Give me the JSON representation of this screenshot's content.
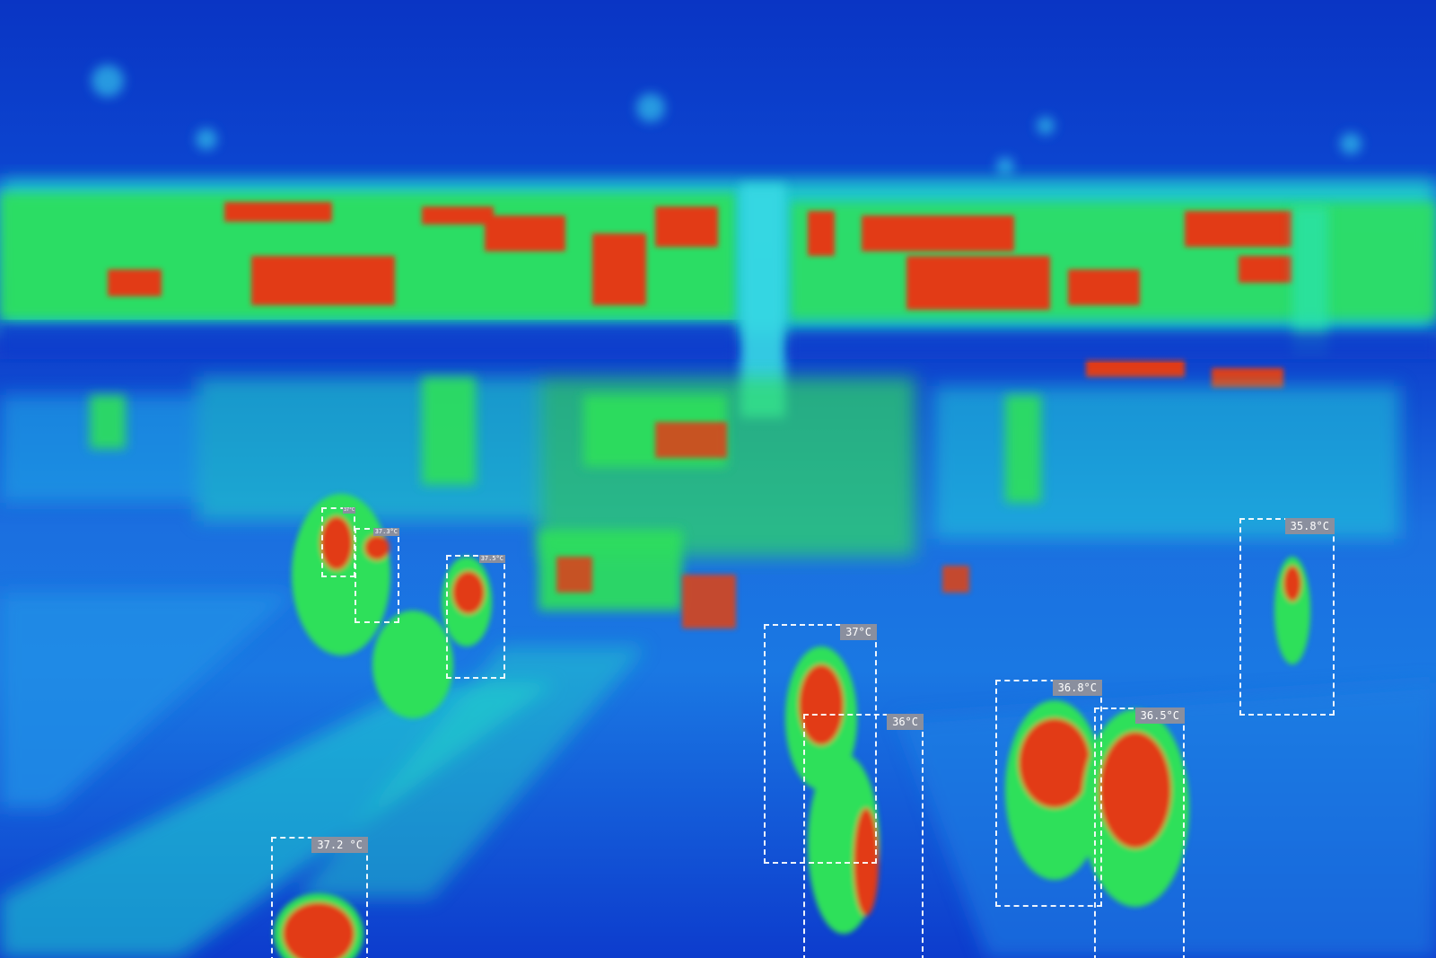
{
  "image": {
    "description_tags": [
      "thermal-camera-view",
      "indoor-hall",
      "people-detections"
    ],
    "palette": {
      "cold": "#0a2db8",
      "cool": "#1a7be0",
      "mid": "#22e8e0",
      "warm": "#2ee05a",
      "hot": "#e8321a"
    }
  },
  "detections": [
    {
      "id": "det-1",
      "label": "37.2 °C"
    },
    {
      "id": "det-2",
      "label": "37°C"
    },
    {
      "id": "det-3",
      "label": "36°C"
    },
    {
      "id": "det-4",
      "label": "36.8°C"
    },
    {
      "id": "det-5",
      "label": "36.5°C"
    },
    {
      "id": "det-6",
      "label": "35.8°C"
    },
    {
      "id": "det-7",
      "label": "37.5°C"
    },
    {
      "id": "det-8",
      "label": "37.3°C"
    },
    {
      "id": "det-9",
      "label": "37°C"
    }
  ]
}
